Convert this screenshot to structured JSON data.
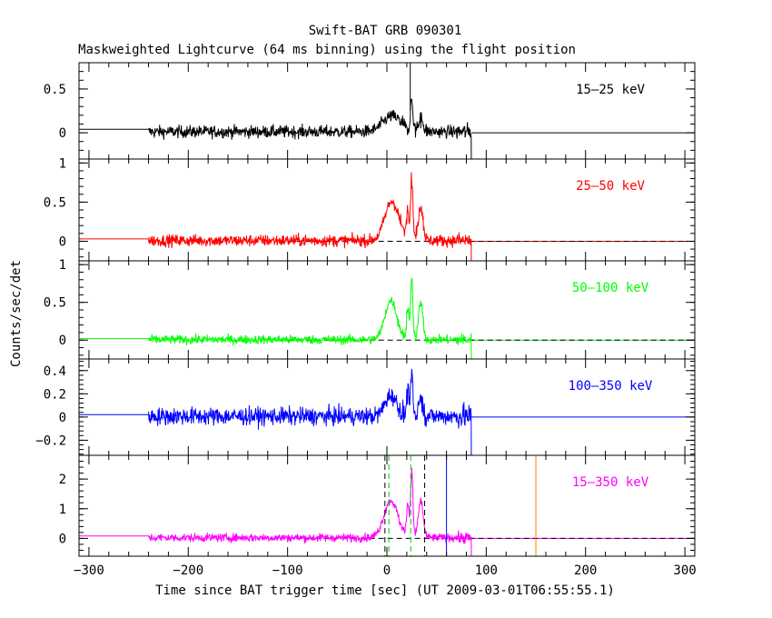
{
  "chart_data": {
    "type": "line",
    "title": "Swift-BAT GRB 090301",
    "subtitle": "Maskweighted Lightcurve (64 ms binning) using the flight position",
    "xlabel": "Time since BAT trigger time [sec] (UT 2009-03-01T06:55:55.1)",
    "ylabel": "Counts/sec/det",
    "xlim": [
      -310,
      310
    ],
    "xticks": [
      -300,
      -200,
      -100,
      0,
      100,
      200,
      300
    ],
    "xtick_labels": [
      "−300",
      "−200",
      "−100",
      "0",
      "100",
      "200",
      "300"
    ],
    "data_range": [
      -240,
      85
    ],
    "panels": [
      {
        "band": "15–25 keV",
        "color": "#000000",
        "ylim": [
          -0.3,
          0.8
        ],
        "yticks": [
          0,
          0.5
        ],
        "ytick_labels": [
          "0",
          "0.5"
        ],
        "baseline": 0.04,
        "noise": 0.065,
        "peaks": [
          [
            5,
            9,
            0.18
          ],
          [
            25,
            1.2,
            0.35
          ],
          [
            34,
            2.5,
            0.15
          ]
        ],
        "dashed_zero": false
      },
      {
        "band": "25–50 keV",
        "color": "#ff0000",
        "ylim": [
          -0.25,
          1.05
        ],
        "yticks": [
          0,
          0.5,
          1
        ],
        "ytick_labels": [
          "0",
          "0.5",
          "1"
        ],
        "baseline": 0.03,
        "noise": 0.07,
        "peaks": [
          [
            5,
            7,
            0.5
          ],
          [
            21,
            1.3,
            0.38
          ],
          [
            25,
            1.2,
            0.8
          ],
          [
            34,
            2.4,
            0.45
          ]
        ],
        "dashed_zero": true
      },
      {
        "band": "50–100 keV",
        "color": "#00ff00",
        "ylim": [
          -0.25,
          1.05
        ],
        "yticks": [
          0,
          0.5,
          1
        ],
        "ytick_labels": [
          "0",
          "0.5",
          "1"
        ],
        "baseline": 0.02,
        "noise": 0.055,
        "peaks": [
          [
            4,
            6,
            0.52
          ],
          [
            21,
            1.2,
            0.42
          ],
          [
            25,
            1.1,
            0.82
          ],
          [
            34,
            2.3,
            0.48
          ]
        ],
        "dashed_zero": true
      },
      {
        "band": "100–350 keV",
        "color": "#0000ff",
        "ylim": [
          -0.33,
          0.5
        ],
        "yticks": [
          -0.2,
          0,
          0.2,
          0.4
        ],
        "ytick_labels": [
          "−0.2",
          "0",
          "0.2",
          "0.4"
        ],
        "baseline": 0.02,
        "noise": 0.07,
        "peaks": [
          [
            4,
            6,
            0.18
          ],
          [
            21,
            1.2,
            0.2
          ],
          [
            25,
            1.1,
            0.38
          ],
          [
            34,
            2.3,
            0.16
          ]
        ],
        "dashed_zero": false
      },
      {
        "band": "15–350 keV",
        "color": "#ff00ff",
        "ylim": [
          -0.6,
          2.8
        ],
        "yticks": [
          0,
          1,
          2
        ],
        "ytick_labels": [
          "0",
          "1",
          "2"
        ],
        "baseline": 0.08,
        "noise": 0.13,
        "peaks": [
          [
            4,
            7,
            1.25
          ],
          [
            21,
            1.3,
            1.1
          ],
          [
            25,
            1.2,
            2.2
          ],
          [
            34,
            2.5,
            1.2
          ]
        ],
        "dashed_zero": true
      }
    ],
    "markers": [
      {
        "name": "T90 start",
        "x": -2,
        "color": "#000000",
        "style": "dashed"
      },
      {
        "name": "T90 end",
        "x": 38,
        "color": "#000000",
        "style": "dashed"
      },
      {
        "name": "T50 start",
        "x": 2,
        "color": "#00cc00",
        "style": "dashed"
      },
      {
        "name": "T50 end",
        "x": 24,
        "color": "#00cc00",
        "style": "dashed"
      },
      {
        "name": "blue marker",
        "x": 60,
        "color": "#0000ff",
        "style": "solid"
      },
      {
        "name": "orange marker",
        "x": 150,
        "color": "#ff8000",
        "style": "solid"
      }
    ]
  }
}
